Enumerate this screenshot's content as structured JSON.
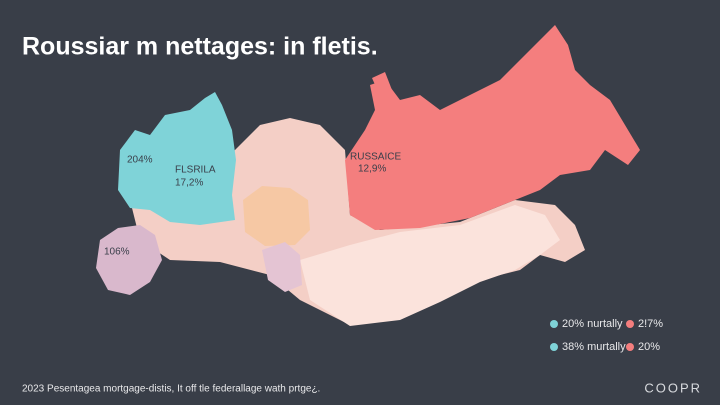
{
  "header": {
    "title": "Roussiar m nettages: in fletis."
  },
  "regions": [
    {
      "value": "204%"
    },
    {
      "label": "FLSRILA",
      "value": "17,2%"
    },
    {
      "label": "RUSSAICE",
      "value": "12,9%"
    },
    {
      "value": "106%"
    }
  ],
  "legend": {
    "items": [
      {
        "label": "20% nurtally"
      },
      {
        "label": "2!7%"
      },
      {
        "label": "38% murtally"
      },
      {
        "label": "20%"
      }
    ]
  },
  "footer": {
    "note": "2023 Pesentagea mortgage-distis, It off tle federallage wath prtge¿.",
    "brand": "COOPR"
  }
}
